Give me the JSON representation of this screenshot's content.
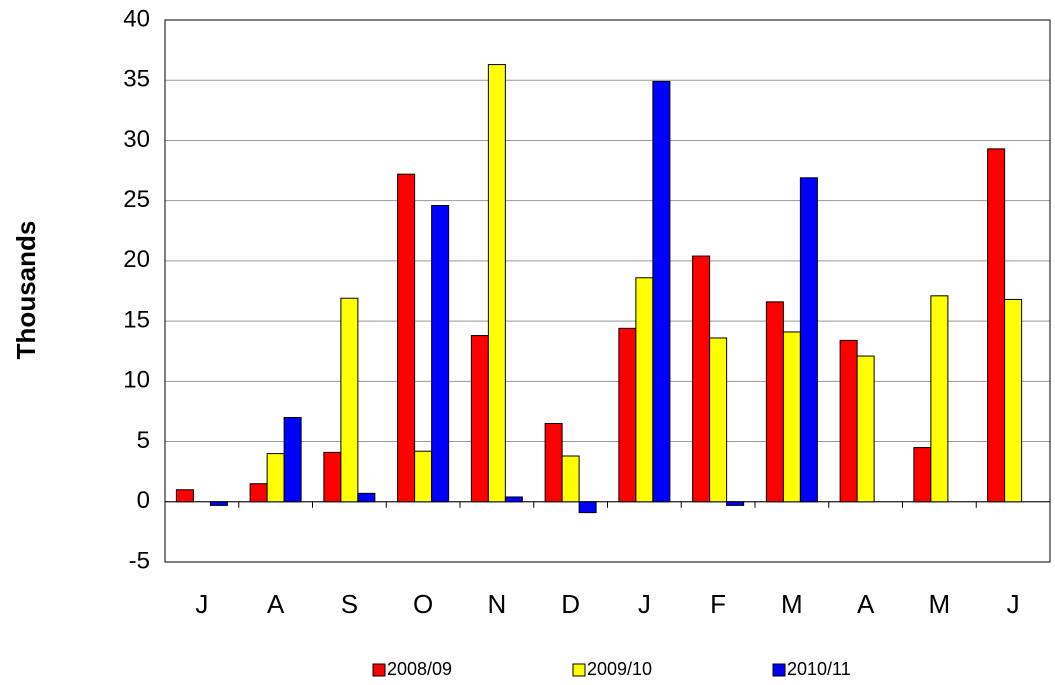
{
  "chart_data": {
    "type": "bar",
    "y_label": "Thousands",
    "categories": [
      "J",
      "A",
      "S",
      "O",
      "N",
      "D",
      "J",
      "F",
      "M",
      "A",
      "M",
      "J"
    ],
    "series": [
      {
        "name": "2008/09",
        "color": "#ff0000",
        "values": [
          1.0,
          1.5,
          4.1,
          27.2,
          13.8,
          6.5,
          14.4,
          20.4,
          16.6,
          13.4,
          4.5,
          29.3
        ]
      },
      {
        "name": "2009/10",
        "color": "#ffff00",
        "values": [
          null,
          4.0,
          16.9,
          4.2,
          36.3,
          3.8,
          18.6,
          13.6,
          14.1,
          12.1,
          17.1,
          16.8
        ]
      },
      {
        "name": "2010/11",
        "color": "#0000ff",
        "values": [
          -0.3,
          7.0,
          0.7,
          24.6,
          0.4,
          -0.9,
          34.9,
          -0.3,
          26.9,
          null,
          null,
          null
        ]
      }
    ],
    "ylim": [
      -5,
      40
    ],
    "yticks": [
      -5,
      0,
      5,
      10,
      15,
      20,
      25,
      30,
      35,
      40
    ],
    "grid": true,
    "legend": "bottom"
  }
}
